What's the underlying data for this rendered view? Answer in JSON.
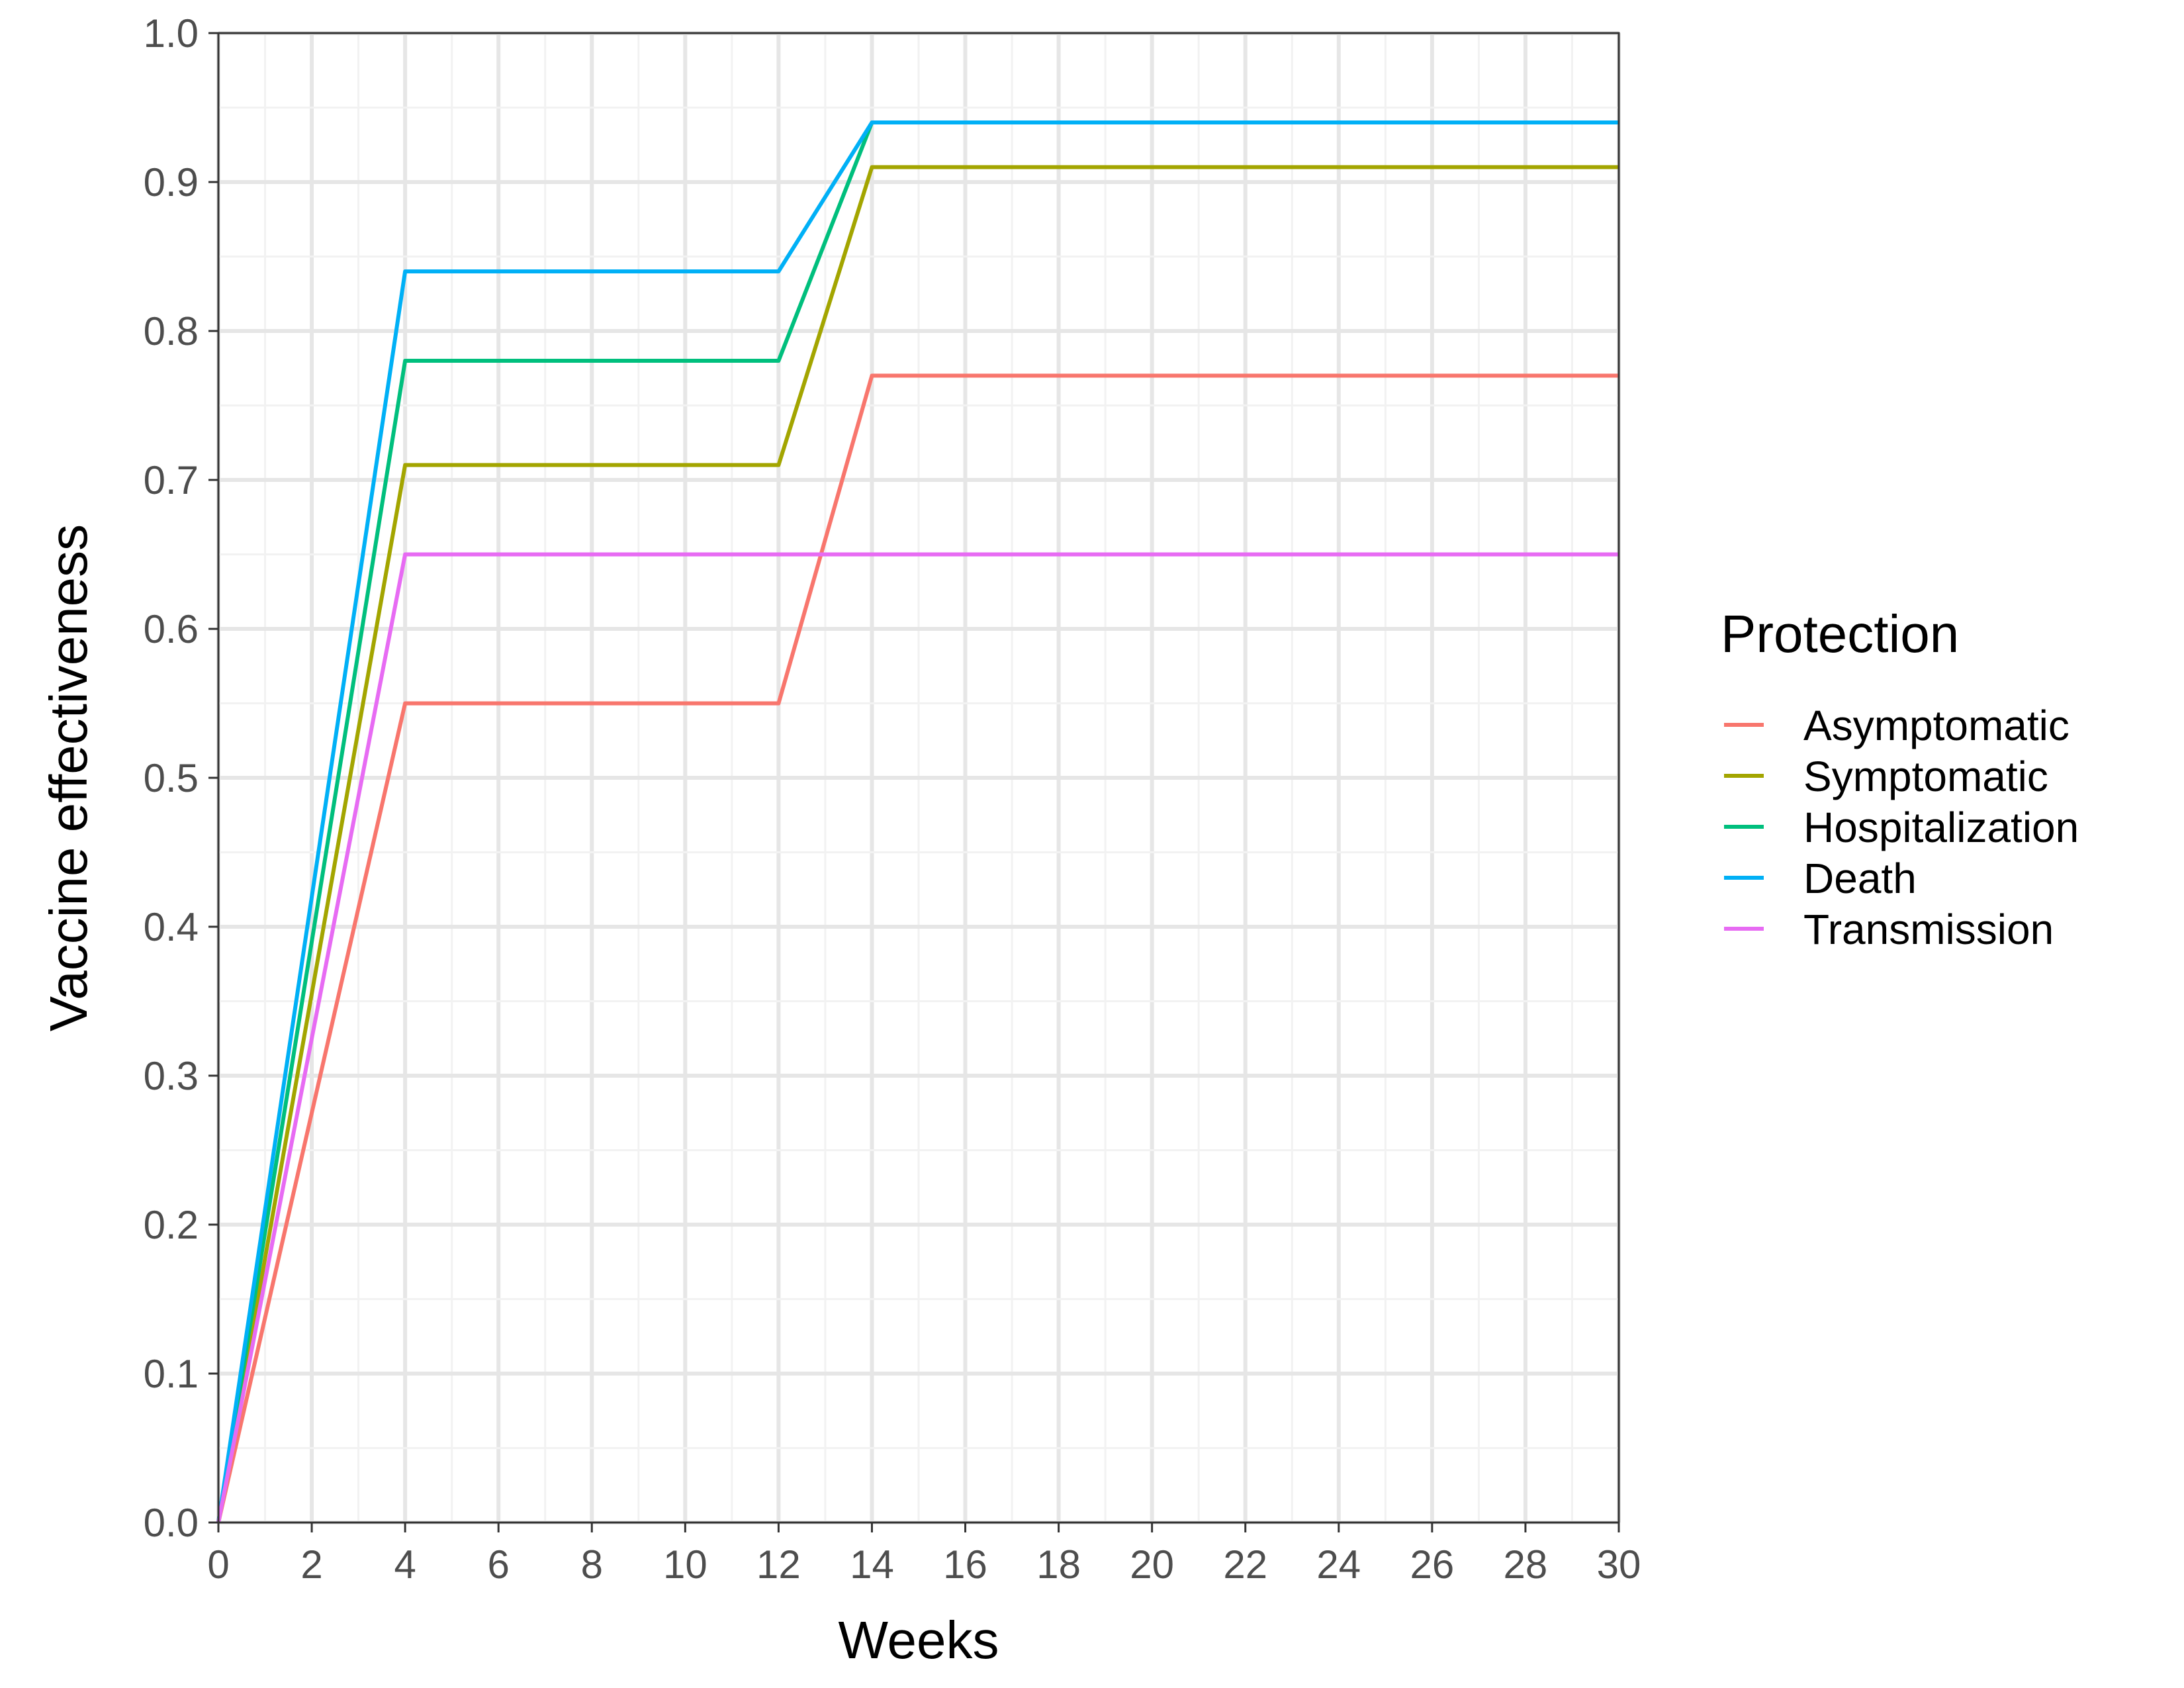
{
  "chart_data": {
    "type": "line",
    "title": "",
    "xlabel": "Weeks",
    "ylabel": "Vaccine effectiveness",
    "xlim": [
      0,
      30
    ],
    "ylim": [
      0,
      1
    ],
    "x_ticks": [
      "0",
      "2",
      "4",
      "6",
      "8",
      "10",
      "12",
      "14",
      "16",
      "18",
      "20",
      "22",
      "24",
      "26",
      "28",
      "30"
    ],
    "y_ticks": [
      "0.0",
      "0.1",
      "0.2",
      "0.3",
      "0.4",
      "0.5",
      "0.6",
      "0.7",
      "0.8",
      "0.9",
      "1.0"
    ],
    "grid": true,
    "legend": {
      "title": "Protection",
      "position": "right"
    },
    "x": [
      0,
      4,
      12,
      14,
      30
    ],
    "series": [
      {
        "name": "Asymptomatic",
        "color": "#F8766D",
        "values": [
          0,
          0.55,
          0.55,
          0.77,
          0.77
        ]
      },
      {
        "name": "Symptomatic",
        "color": "#A3A500",
        "values": [
          0,
          0.71,
          0.71,
          0.91,
          0.91
        ]
      },
      {
        "name": "Hospitalization",
        "color": "#00BF7D",
        "values": [
          0,
          0.78,
          0.78,
          0.94,
          0.94
        ]
      },
      {
        "name": "Death",
        "color": "#00B0F6",
        "values": [
          0,
          0.84,
          0.84,
          0.94,
          0.94
        ]
      },
      {
        "name": "Transmission",
        "color": "#E76BF3",
        "values": [
          0,
          0.65,
          0.65,
          0.65,
          0.65
        ]
      }
    ]
  }
}
